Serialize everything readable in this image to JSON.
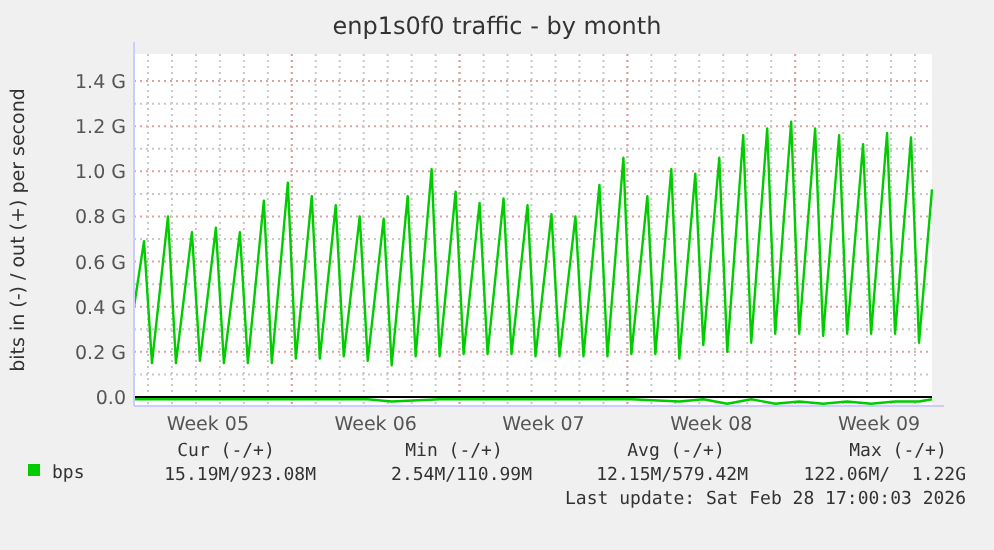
{
  "chart_data": {
    "type": "line",
    "title": "enp1s0f0 traffic - by month",
    "ylabel": "bits in (-) / out (+) per second",
    "xlim": [
      "2026-01-26T10:00",
      "2026-02-28T17:00"
    ],
    "xticks": [
      {
        "value": "2026-01-29T12:00",
        "label": "Week 05"
      },
      {
        "value": "2026-02-02T00:00",
        "label": null
      },
      {
        "value": "2026-02-05T12:00",
        "label": "Week 06"
      },
      {
        "value": "2026-02-09T00:00",
        "label": null
      },
      {
        "value": "2026-02-12T12:00",
        "label": "Week 07"
      },
      {
        "value": "2026-02-16T00:00",
        "label": null
      },
      {
        "value": "2026-02-19T12:00",
        "label": "Week 08"
      },
      {
        "value": "2026-02-23T00:00",
        "label": null
      },
      {
        "value": "2026-02-26T12:00",
        "label": "Week 09"
      }
    ],
    "ylim": [
      -0.04,
      1.52
    ],
    "yticks": [
      {
        "value": 0,
        "label": "0.0"
      },
      {
        "value": 0.2,
        "label": "0.2 G"
      },
      {
        "value": 0.4,
        "label": "0.4 G"
      },
      {
        "value": 0.6,
        "label": "0.6 G"
      },
      {
        "value": 0.8,
        "label": "0.8 G"
      },
      {
        "value": 1.0,
        "label": "1.0 G"
      },
      {
        "value": 1.2,
        "label": "1.2 G"
      },
      {
        "value": 1.4,
        "label": "1.4 G"
      }
    ],
    "grid": true,
    "legend": "bottom left",
    "line_style": "solid",
    "marker": "none",
    "ref_lines": [
      {
        "axis": "y",
        "value": 0,
        "color": "#000000"
      }
    ],
    "series": [
      {
        "name": "bps",
        "color": "#00cc00",
        "x": [
          "2026-01-26T10:00",
          "2026-01-26T20:00",
          "2026-01-27T04:00",
          "2026-01-27T20:00",
          "2026-01-28T04:00",
          "2026-01-28T20:00",
          "2026-01-29T04:00",
          "2026-01-29T20:00",
          "2026-01-30T04:00",
          "2026-01-30T20:00",
          "2026-01-31T04:00",
          "2026-01-31T20:00",
          "2026-02-01T04:00",
          "2026-02-01T20:00",
          "2026-02-02T04:00",
          "2026-02-02T20:00",
          "2026-02-03T04:00",
          "2026-02-03T20:00",
          "2026-02-04T04:00",
          "2026-02-04T20:00",
          "2026-02-05T04:00",
          "2026-02-05T20:00",
          "2026-02-06T04:00",
          "2026-02-06T20:00",
          "2026-02-07T04:00",
          "2026-02-07T20:00",
          "2026-02-08T04:00",
          "2026-02-08T20:00",
          "2026-02-09T04:00",
          "2026-02-09T20:00",
          "2026-02-10T04:00",
          "2026-02-10T20:00",
          "2026-02-11T04:00",
          "2026-02-11T20:00",
          "2026-02-12T04:00",
          "2026-02-12T20:00",
          "2026-02-13T04:00",
          "2026-02-13T20:00",
          "2026-02-14T04:00",
          "2026-02-14T20:00",
          "2026-02-15T04:00",
          "2026-02-15T20:00",
          "2026-02-16T04:00",
          "2026-02-16T20:00",
          "2026-02-17T04:00",
          "2026-02-17T20:00",
          "2026-02-18T04:00",
          "2026-02-18T20:00",
          "2026-02-19T04:00",
          "2026-02-19T20:00",
          "2026-02-20T04:00",
          "2026-02-20T20:00",
          "2026-02-21T04:00",
          "2026-02-21T20:00",
          "2026-02-22T04:00",
          "2026-02-22T20:00",
          "2026-02-23T04:00",
          "2026-02-23T20:00",
          "2026-02-24T04:00",
          "2026-02-24T20:00",
          "2026-02-25T04:00",
          "2026-02-25T20:00",
          "2026-02-26T04:00",
          "2026-02-26T20:00",
          "2026-02-27T04:00",
          "2026-02-27T20:00",
          "2026-02-28T04:00",
          "2026-02-28T17:00"
        ],
        "values": [
          0.4,
          0.69,
          0.15,
          0.8,
          0.15,
          0.73,
          0.16,
          0.75,
          0.15,
          0.73,
          0.15,
          0.87,
          0.15,
          0.95,
          0.17,
          0.89,
          0.17,
          0.85,
          0.18,
          0.8,
          0.16,
          0.79,
          0.14,
          0.89,
          0.18,
          1.01,
          0.18,
          0.91,
          0.19,
          0.86,
          0.19,
          0.88,
          0.19,
          0.85,
          0.18,
          0.81,
          0.18,
          0.8,
          0.18,
          0.94,
          0.18,
          1.06,
          0.19,
          0.89,
          0.19,
          1.01,
          0.17,
          0.99,
          0.23,
          1.06,
          0.2,
          1.16,
          0.24,
          1.19,
          0.28,
          1.22,
          0.28,
          1.19,
          0.27,
          1.16,
          0.28,
          1.12,
          0.28,
          1.17,
          0.28,
          1.15,
          0.24,
          0.92
        ]
      },
      {
        "color": "#00cc00",
        "x": [
          "2026-01-26T10:00",
          "2026-01-28T04:00",
          "2026-01-30T04:00",
          "2026-02-01T04:00",
          "2026-02-03T04:00",
          "2026-02-05T04:00",
          "2026-02-06T04:00",
          "2026-02-08T04:00",
          "2026-02-10T04:00",
          "2026-02-12T04:00",
          "2026-02-14T04:00",
          "2026-02-16T04:00",
          "2026-02-18T04:00",
          "2026-02-19T04:00",
          "2026-02-20T04:00",
          "2026-02-21T04:00",
          "2026-02-22T04:00",
          "2026-02-23T04:00",
          "2026-02-24T04:00",
          "2026-02-25T04:00",
          "2026-02-26T04:00",
          "2026-02-27T04:00",
          "2026-02-28T04:00",
          "2026-02-28T17:00"
        ],
        "values": [
          -0.01,
          -0.01,
          -0.01,
          -0.01,
          -0.01,
          -0.01,
          -0.02,
          -0.01,
          -0.01,
          -0.01,
          -0.01,
          -0.01,
          -0.02,
          -0.01,
          -0.03,
          -0.01,
          -0.03,
          -0.02,
          -0.03,
          -0.02,
          -0.03,
          -0.02,
          -0.02,
          -0.01
        ]
      }
    ],
    "annotations": [
      "Cur (-/+)",
      "Min (-/+)",
      "Avg (-/+)",
      "Max (-/+)",
      "15.19M/923.08M",
      "2.54M/110.99M",
      "12.15M/579.42M",
      "122.06M/  1.22G",
      "Last update: Sat Feb 28 17:00:03 2026"
    ]
  }
}
